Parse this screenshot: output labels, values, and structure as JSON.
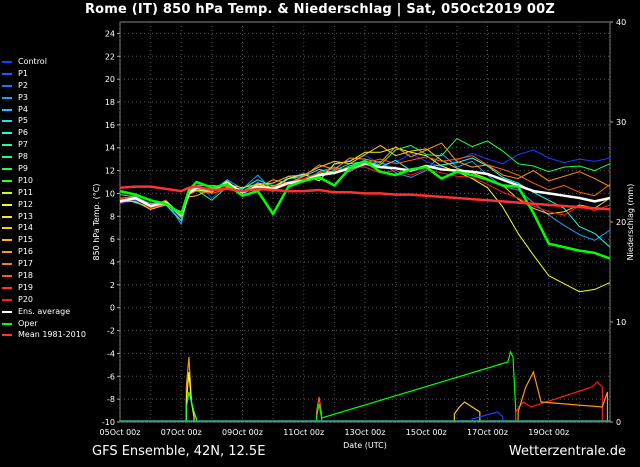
{
  "header": {
    "title": "Rome  (IT)  850 hPa Temp. & Niederschlag | Sat, 05Oct2019 00Z"
  },
  "footer": {
    "model_info": "GFS Ensemble, 42N, 12.5E",
    "brand": "Wetterzentrale.de"
  },
  "legend": [
    {
      "label": "Control",
      "color": "#1a3cff"
    },
    {
      "label": "P1",
      "color": "#1a5aff"
    },
    {
      "label": "P2",
      "color": "#1a78ff"
    },
    {
      "label": "P3",
      "color": "#1aa0ff"
    },
    {
      "label": "P4",
      "color": "#1ac0ff"
    },
    {
      "label": "P5",
      "color": "#1ae0ff"
    },
    {
      "label": "P6",
      "color": "#1affe0"
    },
    {
      "label": "P7",
      "color": "#1affb0"
    },
    {
      "label": "P8",
      "color": "#1aff80"
    },
    {
      "label": "P9",
      "color": "#1aff50"
    },
    {
      "label": "P10",
      "color": "#30ff1a"
    },
    {
      "label": "P11",
      "color": "#c8ff1a"
    },
    {
      "label": "P12",
      "color": "#f0ff1a"
    },
    {
      "label": "P13",
      "color": "#ffe81a"
    },
    {
      "label": "P14",
      "color": "#ffc81a"
    },
    {
      "label": "P15",
      "color": "#ffb01a"
    },
    {
      "label": "P16",
      "color": "#ff961a"
    },
    {
      "label": "P17",
      "color": "#ff781a"
    },
    {
      "label": "P18",
      "color": "#ff5a1a"
    },
    {
      "label": "P19",
      "color": "#ff3c1a"
    },
    {
      "label": "P20",
      "color": "#ff1a1a"
    },
    {
      "label": "Ens. average",
      "color": "#ffffff"
    },
    {
      "label": "Oper",
      "color": "#00ff00"
    },
    {
      "label": "Mean 1981-2010",
      "color": "#ff3030"
    }
  ],
  "chart_data": {
    "type": "line",
    "ylabel": "850 hPa Temp. (°C)",
    "ylabel_right": "Niederschlag (mm)",
    "xlabel": "Date (UTC)",
    "ylim": [
      -10,
      25
    ],
    "y_ticks": [
      -10,
      -8,
      -6,
      -4,
      -2,
      0,
      2,
      4,
      6,
      8,
      10,
      12,
      14,
      16,
      18,
      20,
      22,
      24
    ],
    "y2lim": [
      0,
      40
    ],
    "y2_ticks": [
      0,
      10,
      20,
      30,
      40
    ],
    "x_range_hours": [
      0,
      240
    ],
    "x_ticks": [
      {
        "h": 0,
        "label": "05Oct 00z"
      },
      {
        "h": 48,
        "label": "07Oct 00z"
      },
      {
        "h": 96,
        "label": "09Oct 00z"
      },
      {
        "h": 144,
        "label": "11Oct 00z"
      },
      {
        "h": 192,
        "label": "13Oct 00z"
      },
      {
        "h": 240,
        "label": "15Oct 00z"
      },
      {
        "h": 288,
        "label": "17Oct 00z"
      },
      {
        "h": 336,
        "label": "19Oct 00z"
      }
    ],
    "x_max_hours": 384,
    "grid": true,
    "temp_hours": [
      0,
      12,
      24,
      36,
      48,
      54,
      60,
      72,
      84,
      96,
      108,
      120,
      132,
      144,
      156,
      168,
      180,
      192,
      204,
      216,
      228,
      240,
      252,
      264,
      276,
      288,
      300,
      312,
      324,
      336,
      348,
      360,
      372,
      384
    ],
    "series": [
      {
        "name": "Ens. average",
        "color": "#ffffff",
        "width": 2.5,
        "values": [
          9.3,
          9.6,
          8.9,
          9.2,
          8.1,
          10.0,
          10.5,
          10.3,
          10.9,
          10.1,
          10.6,
          10.4,
          10.9,
          11.1,
          11.6,
          11.8,
          12.2,
          12.6,
          12.3,
          12.2,
          12.0,
          12.4,
          12.1,
          12.0,
          11.9,
          11.7,
          11.2,
          10.7,
          10.2,
          10.0,
          9.8,
          9.6,
          9.3,
          9.6
        ]
      },
      {
        "name": "Oper",
        "color": "#00ff00",
        "width": 2.5,
        "values": [
          10.2,
          9.9,
          9.4,
          9.1,
          8.2,
          10.3,
          11.0,
          10.5,
          10.8,
          9.8,
          10.2,
          8.2,
          10.6,
          11.1,
          11.4,
          10.7,
          12.2,
          12.8,
          11.9,
          11.6,
          12.1,
          12.3,
          11.3,
          11.9,
          11.6,
          11.2,
          10.7,
          10.6,
          8.3,
          5.6,
          5.3,
          5.0,
          4.8,
          4.3
        ]
      },
      {
        "name": "Mean 1981-2010",
        "color": "#ff3030",
        "width": 2.5,
        "values": [
          10.5,
          10.6,
          10.6,
          10.4,
          10.2,
          10.5,
          10.6,
          10.3,
          10.4,
          10.2,
          10.4,
          10.3,
          10.2,
          10.2,
          10.3,
          10.1,
          10.1,
          10.0,
          10.0,
          9.9,
          9.9,
          9.8,
          9.7,
          9.6,
          9.5,
          9.4,
          9.3,
          9.2,
          9.1,
          9.0,
          8.9,
          8.8,
          8.7,
          8.6
        ]
      },
      {
        "name": "Control",
        "color": "#1a3cff",
        "width": 1,
        "values": [
          9.1,
          9.4,
          8.6,
          9.3,
          7.6,
          10.4,
          11.0,
          9.6,
          10.8,
          9.8,
          11.0,
          10.1,
          11.3,
          11.8,
          11.2,
          12.5,
          12.9,
          13.3,
          12.6,
          12.7,
          13.5,
          12.8,
          12.3,
          12.9,
          13.5,
          13.0,
          12.6,
          13.4,
          13.8,
          13.1,
          12.7,
          13.0,
          12.8,
          13.1
        ]
      },
      {
        "name": "P3",
        "color": "#1aa0ff",
        "width": 1,
        "values": [
          9.4,
          9.8,
          8.9,
          9.4,
          7.3,
          10.1,
          10.6,
          10.2,
          11.2,
          10.4,
          11.6,
          10.2,
          11.5,
          11.0,
          11.9,
          12.3,
          12.0,
          12.5,
          12.8,
          11.8,
          11.4,
          12.0,
          13.5,
          12.3,
          12.8,
          11.6,
          10.6,
          10.3,
          9.2,
          8.1,
          7.2,
          6.4,
          5.9,
          6.8
        ]
      },
      {
        "name": "P6",
        "color": "#1affe0",
        "width": 1,
        "values": [
          9.6,
          9.2,
          8.8,
          9.0,
          7.6,
          10.0,
          10.3,
          10.2,
          10.5,
          10.4,
          11.2,
          10.6,
          11.3,
          11.5,
          12.1,
          11.8,
          12.4,
          12.9,
          12.3,
          12.9,
          12.0,
          12.3,
          12.5,
          12.7,
          13.1,
          12.4,
          11.4,
          10.9,
          10.1,
          9.4,
          8.7,
          7.1,
          6.5,
          5.3
        ]
      },
      {
        "name": "P9",
        "color": "#1aff50",
        "width": 1,
        "values": [
          9.9,
          9.7,
          9.1,
          9.3,
          7.9,
          10.5,
          10.3,
          9.4,
          10.6,
          10.2,
          10.9,
          10.7,
          10.8,
          11.1,
          11.7,
          12.0,
          12.6,
          12.8,
          12.5,
          13.8,
          14.2,
          13.4,
          13.3,
          14.8,
          14.1,
          14.6,
          13.7,
          12.6,
          12.4,
          11.9,
          12.3,
          12.4,
          12.0,
          12.6
        ]
      },
      {
        "name": "P12",
        "color": "#f0ff1a",
        "width": 1,
        "values": [
          9.4,
          9.5,
          8.8,
          9.4,
          8.0,
          10.1,
          10.3,
          10.1,
          11.1,
          10.0,
          10.8,
          10.5,
          11.3,
          11.7,
          11.1,
          12.6,
          12.8,
          13.6,
          13.6,
          14.0,
          13.6,
          13.3,
          12.4,
          11.9,
          11.3,
          10.5,
          8.8,
          6.5,
          4.6,
          2.8,
          2.1,
          1.4,
          1.6,
          2.2
        ]
      },
      {
        "name": "P14",
        "color": "#ffc81a",
        "width": 1,
        "values": [
          9.3,
          9.3,
          8.6,
          9.0,
          8.4,
          9.7,
          9.8,
          10.4,
          10.8,
          10.5,
          10.8,
          10.9,
          11.5,
          11.6,
          12.3,
          12.8,
          12.6,
          13.4,
          14.2,
          13.3,
          13.7,
          13.9,
          12.9,
          12.2,
          11.8,
          11.3,
          10.7,
          9.5,
          8.7,
          8.2,
          8.4,
          9.0,
          8.7,
          9.6
        ]
      },
      {
        "name": "P16",
        "color": "#ff961a",
        "width": 1,
        "values": [
          9.2,
          9.5,
          8.8,
          9.3,
          8.0,
          10.2,
          10.7,
          10.7,
          10.6,
          10.1,
          10.5,
          11.2,
          10.9,
          11.5,
          12.5,
          12.1,
          13.1,
          13.0,
          12.7,
          14.1,
          13.2,
          13.8,
          14.4,
          12.8,
          12.3,
          12.5,
          11.6,
          11.3,
          12.0,
          11.1,
          11.5,
          11.9,
          11.3,
          10.6
        ]
      },
      {
        "name": "P18",
        "color": "#ff5a1a",
        "width": 1,
        "values": [
          9.6,
          9.7,
          8.7,
          9.4,
          7.8,
          9.9,
          10.2,
          10.0,
          10.4,
          10.3,
          10.2,
          10.6,
          11.0,
          11.3,
          11.8,
          12.2,
          11.9,
          12.7,
          13.0,
          12.6,
          12.9,
          13.2,
          12.8,
          13.0,
          13.3,
          12.5,
          12.1,
          11.6,
          10.9,
          10.3,
          10.7,
          10.1,
          9.8,
          10.8
        ]
      },
      {
        "name": "P20",
        "color": "#ff1a1a",
        "width": 1,
        "values": [
          9.5,
          9.6,
          8.7,
          9.1,
          8.2,
          10.0,
          10.5,
          10.3,
          10.7,
          10.0,
          10.7,
          10.3,
          10.8,
          11.3,
          11.5,
          11.9,
          12.3,
          12.3,
          11.8,
          12.0,
          11.6,
          12.1,
          11.8,
          11.5,
          11.4,
          10.8,
          10.1,
          9.6,
          8.9,
          8.4,
          8.1,
          8.9,
          8.5,
          9.0
        ]
      }
    ],
    "precip_bars": [
      {
        "name": "P16",
        "color": "#ff961a",
        "hours": [
          52,
          54,
          56,
          58,
          60
        ],
        "values": [
          3.5,
          6.5,
          2.0,
          1.0,
          0.2
        ]
      },
      {
        "name": "P12",
        "color": "#f0ff1a",
        "hours": [
          52,
          54,
          56,
          58
        ],
        "values": [
          2.0,
          5.0,
          2.0,
          0.5
        ]
      },
      {
        "name": "P9",
        "color": "#1aff50",
        "hours": [
          52,
          54,
          56,
          58,
          60
        ],
        "values": [
          1.5,
          3.0,
          2.0,
          1.0,
          0.3
        ]
      },
      {
        "name": "P18",
        "color": "#ff5a1a",
        "hours": [
          154,
          156,
          158
        ],
        "values": [
          1.0,
          2.5,
          0.8
        ]
      },
      {
        "name": "Oper",
        "color": "#00ff00",
        "hours": [
          154,
          156,
          158,
          304,
          306,
          308,
          310
        ],
        "values": [
          0.5,
          1.8,
          0.4,
          6.0,
          7.0,
          6.5,
          1.5
        ]
      },
      {
        "name": "P14",
        "color": "#ffc81a",
        "hours": [
          262,
          266,
          270,
          276,
          282
        ],
        "values": [
          0.8,
          1.5,
          2.0,
          1.5,
          1.0
        ]
      },
      {
        "name": "P20",
        "color": "#ff1a1a",
        "hours": [
          310,
          316,
          322,
          370,
          374,
          378
        ],
        "values": [
          1.0,
          2.0,
          1.5,
          3.5,
          4.0,
          3.5
        ]
      },
      {
        "name": "P16",
        "color": "#ff961a",
        "hours": [
          312,
          318,
          324,
          330,
          378,
          382
        ],
        "values": [
          1.0,
          3.5,
          5.0,
          2.0,
          1.5,
          3.0
        ]
      },
      {
        "name": "Control",
        "color": "#1a3cff",
        "hours": [
          276,
          290,
          296,
          300
        ],
        "values": [
          0.3,
          0.8,
          1.0,
          0.5
        ]
      }
    ]
  }
}
